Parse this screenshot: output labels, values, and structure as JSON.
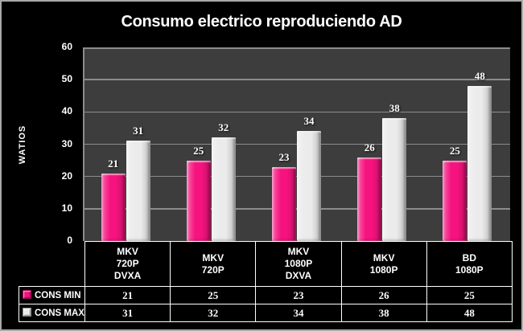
{
  "window": {
    "background": "#000000",
    "border_color": "#a8a8a8"
  },
  "chart_data": {
    "type": "bar",
    "title": "Consumo electrico reproduciendo AD",
    "ylabel": "WATIOS",
    "xlabel": "",
    "ylim": [
      0,
      60
    ],
    "yticks": [
      0,
      10,
      20,
      30,
      40,
      50,
      60
    ],
    "grid": true,
    "plot_bg": "#3d3d3d",
    "grid_color": "#8c8c8c",
    "legend_position": "table-left",
    "categories": [
      {
        "label": "MKV 720P DVXA",
        "lines": [
          "MKV",
          "720P",
          "DVXA"
        ]
      },
      {
        "label": "MKV 720P",
        "lines": [
          "MKV",
          "720P"
        ]
      },
      {
        "label": "MKV 1080P DXVA",
        "lines": [
          "MKV",
          "1080P",
          "DXVA"
        ]
      },
      {
        "label": "MKV 1080P",
        "lines": [
          "MKV",
          "1080P"
        ]
      },
      {
        "label": "BD 1080P",
        "lines": [
          "BD",
          "1080P"
        ]
      }
    ],
    "series": [
      {
        "name": "CONS MIN",
        "color": "#f6137f",
        "swatch_border": "#9b0d55",
        "values": [
          21,
          25,
          23,
          26,
          25
        ]
      },
      {
        "name": "CONS MAX",
        "color": "#ebebeb",
        "swatch_border": "#8f8f8f",
        "values": [
          31,
          32,
          34,
          38,
          48
        ]
      }
    ]
  }
}
